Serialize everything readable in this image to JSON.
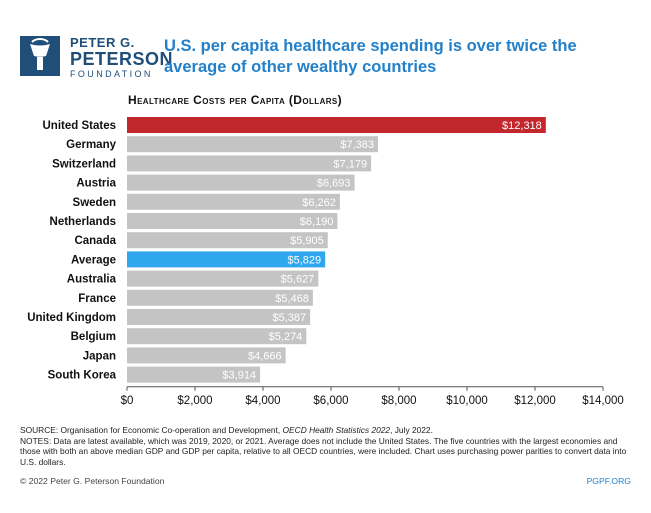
{
  "logo": {
    "line1": "PETER G.",
    "line2": "PETERSON",
    "line3": "FOUNDATION"
  },
  "title": "U.S. per capita healthcare spending is over twice the average of other wealthy countries",
  "chart_data": {
    "type": "bar",
    "orientation": "horizontal",
    "subtitle": "Healthcare Costs per Capita (Dollars)",
    "categories": [
      "United States",
      "Germany",
      "Switzerland",
      "Austria",
      "Sweden",
      "Netherlands",
      "Canada",
      "Average",
      "Australia",
      "France",
      "United Kingdom",
      "Belgium",
      "Japan",
      "South Korea"
    ],
    "values": [
      12318,
      7383,
      7179,
      6693,
      6262,
      6190,
      5905,
      5829,
      5627,
      5468,
      5387,
      5274,
      4666,
      3914
    ],
    "value_labels": [
      "$12,318",
      "$7,383",
      "$7,179",
      "$6,693",
      "$6,262",
      "$6,190",
      "$5,905",
      "$5,829",
      "$5,627",
      "$5,468",
      "$5,387",
      "$5,274",
      "$4,666",
      "$3,914"
    ],
    "bar_colors": [
      "#c1272d",
      "#c4c4c4",
      "#c4c4c4",
      "#c4c4c4",
      "#c4c4c4",
      "#c4c4c4",
      "#c4c4c4",
      "#2fa7ef",
      "#c4c4c4",
      "#c4c4c4",
      "#c4c4c4",
      "#c4c4c4",
      "#c4c4c4",
      "#c4c4c4"
    ],
    "xlim": [
      0,
      14000
    ],
    "xticks": [
      0,
      2000,
      4000,
      6000,
      8000,
      10000,
      12000,
      14000
    ],
    "xtick_labels": [
      "$0",
      "$2,000",
      "$4,000",
      "$6,000",
      "$8,000",
      "$10,000",
      "$12,000",
      "$14,000"
    ],
    "grid": false
  },
  "footer": {
    "source_prefix": "SOURCE: Organisation for Economic Co-operation and Development, ",
    "source_italic": "OECD Health Statistics 2022",
    "source_suffix": ", July 2022.",
    "notes": "NOTES: Data are latest available, which was 2019, 2020, or 2021. Average does not include the United States. The five countries with the largest economies and those with both an above median GDP and GDP per capita, relative to all OECD countries, were included. Chart uses purchasing power parities to convert data into U.S. dollars.",
    "copyright": "© 2022 Peter G. Peterson Foundation",
    "site": "PGPF.ORG"
  }
}
